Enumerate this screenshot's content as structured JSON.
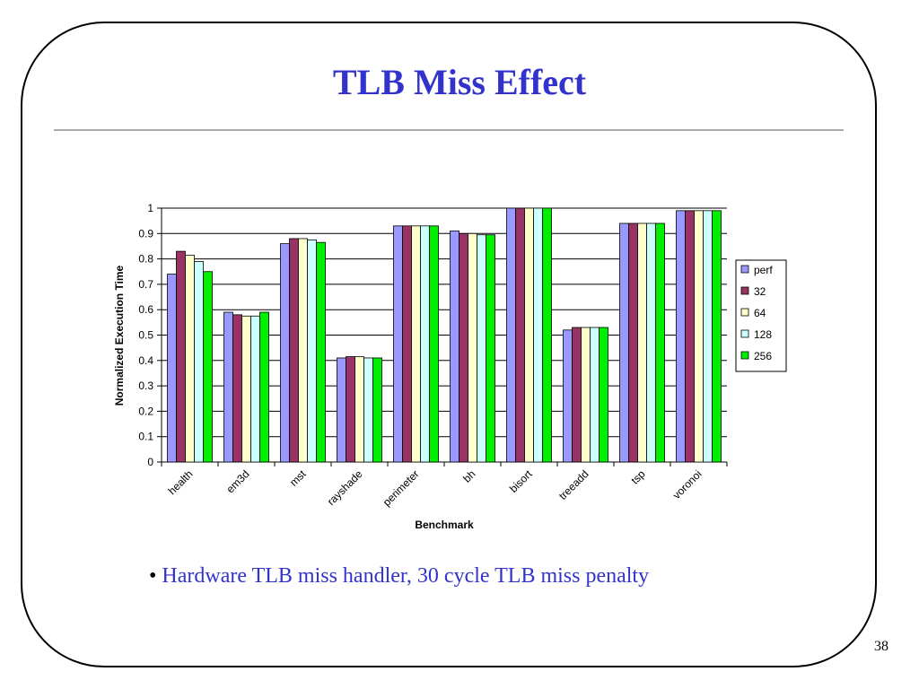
{
  "slide": {
    "title": "TLB Miss Effect",
    "bullet": "Hardware TLB miss handler, 30 cycle TLB miss penalty",
    "page_number": "38"
  },
  "colors": {
    "title": "#3333cc",
    "perf": "#9999ff",
    "32": "#993366",
    "64": "#ffffcc",
    "128": "#ccffff",
    "256": "#00ee00"
  },
  "chart_data": {
    "type": "bar",
    "title": "",
    "xlabel": "Benchmark",
    "ylabel": "Normalized Execution Time",
    "ylim": [
      0,
      1
    ],
    "yticks": [
      "0",
      "0.1",
      "0.2",
      "0.3",
      "0.4",
      "0.5",
      "0.6",
      "0.7",
      "0.8",
      "0.9",
      "1"
    ],
    "grid": true,
    "legend_position": "right",
    "categories": [
      "health",
      "em3d",
      "mst",
      "rayshade",
      "perimeter",
      "bh",
      "bisort",
      "treeadd",
      "tsp",
      "voronoi"
    ],
    "series": [
      {
        "name": "perf",
        "color": "#9999ff",
        "values": [
          0.74,
          0.59,
          0.86,
          0.41,
          0.93,
          0.91,
          1.0,
          0.52,
          0.94,
          0.99
        ]
      },
      {
        "name": "32",
        "color": "#993366",
        "values": [
          0.83,
          0.58,
          0.88,
          0.415,
          0.93,
          0.9,
          1.0,
          0.53,
          0.94,
          0.99
        ]
      },
      {
        "name": "64",
        "color": "#ffffcc",
        "values": [
          0.815,
          0.575,
          0.88,
          0.415,
          0.93,
          0.9,
          1.0,
          0.53,
          0.94,
          0.99
        ]
      },
      {
        "name": "128",
        "color": "#ccffff",
        "values": [
          0.79,
          0.575,
          0.875,
          0.41,
          0.93,
          0.895,
          1.0,
          0.53,
          0.94,
          0.99
        ]
      },
      {
        "name": "256",
        "color": "#00ee00",
        "values": [
          0.75,
          0.59,
          0.865,
          0.41,
          0.93,
          0.895,
          1.0,
          0.53,
          0.94,
          0.99
        ]
      }
    ]
  }
}
